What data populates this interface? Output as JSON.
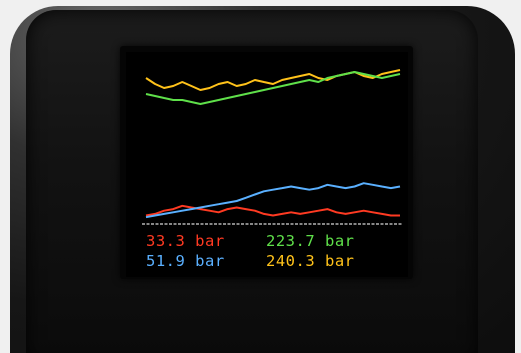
{
  "device": {
    "housing_color": "#161616"
  },
  "display": {
    "background": "#000000",
    "readouts": [
      {
        "name": "red",
        "text": "33.3 bar",
        "color": "#ff3a22"
      },
      {
        "name": "green",
        "text": "223.7 bar",
        "color": "#5fe04a"
      },
      {
        "name": "blue",
        "text": "51.9 bar",
        "color": "#5ab0ff"
      },
      {
        "name": "yellow",
        "text": "240.3 bar",
        "color": "#ffc21a"
      }
    ]
  },
  "chart_data": [
    {
      "type": "line",
      "series": [
        {
          "color": "#ffc21a",
          "values": [
            236,
            233,
            231,
            232,
            234,
            232,
            230,
            231,
            233,
            234,
            232,
            233,
            235,
            234,
            233,
            235,
            236,
            237,
            238,
            236,
            235,
            237,
            238,
            239,
            237,
            236,
            238,
            239,
            240,
            240.3
          ]
        },
        {
          "color": "#5fe04a",
          "values": [
            228,
            227,
            226,
            225,
            225,
            224,
            223,
            224,
            225,
            226,
            227,
            228,
            229,
            230,
            231,
            232,
            233,
            234,
            235,
            234,
            236,
            237,
            238,
            239,
            238,
            237,
            236,
            237,
            238,
            223.7
          ]
        }
      ]
    },
    {
      "type": "line",
      "series": [
        {
          "color": "#ff3a22",
          "values": [
            34,
            35,
            37,
            38,
            40,
            39,
            38,
            37,
            36,
            38,
            39,
            38,
            37,
            35,
            34,
            35,
            36,
            35,
            36,
            37,
            38,
            36,
            35,
            36,
            37,
            36,
            35,
            34,
            34,
            33.3
          ]
        },
        {
          "color": "#5ab0ff",
          "values": [
            33,
            34,
            35,
            36,
            37,
            38,
            39,
            40,
            41,
            42,
            43,
            45,
            47,
            49,
            50,
            51,
            52,
            51,
            50,
            51,
            53,
            52,
            51,
            52,
            54,
            53,
            52,
            51,
            52,
            51.9
          ]
        }
      ]
    }
  ]
}
